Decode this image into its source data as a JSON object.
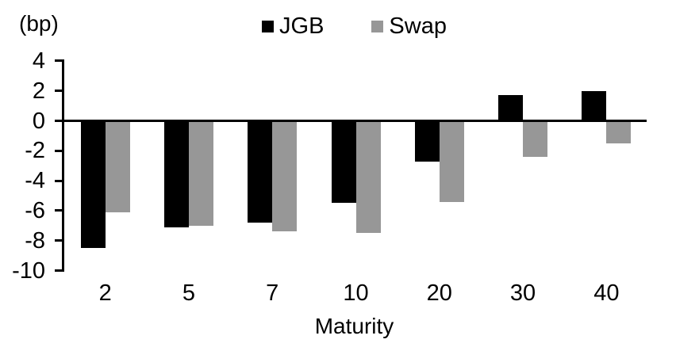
{
  "chart_data": {
    "type": "bar",
    "unit_label": "(bp)",
    "categories": [
      "2",
      "5",
      "7",
      "10",
      "20",
      "30",
      "40"
    ],
    "series": [
      {
        "name": "JGB",
        "color": "#000000",
        "values": [
          -8.5,
          -7.1,
          -6.8,
          -5.5,
          -2.7,
          1.7,
          2.0
        ]
      },
      {
        "name": "Swap",
        "color": "#979797",
        "values": [
          -6.1,
          -7.0,
          -7.4,
          -7.5,
          -5.4,
          -2.4,
          -1.5
        ]
      }
    ],
    "xlabel": "Maturity",
    "ylim": [
      -10,
      4
    ],
    "yticks": [
      4,
      2,
      0,
      -2,
      -4,
      -6,
      -8,
      -10
    ],
    "legend_position": "top-center",
    "grid": false,
    "axis_color": "#000000",
    "background": "#ffffff"
  }
}
